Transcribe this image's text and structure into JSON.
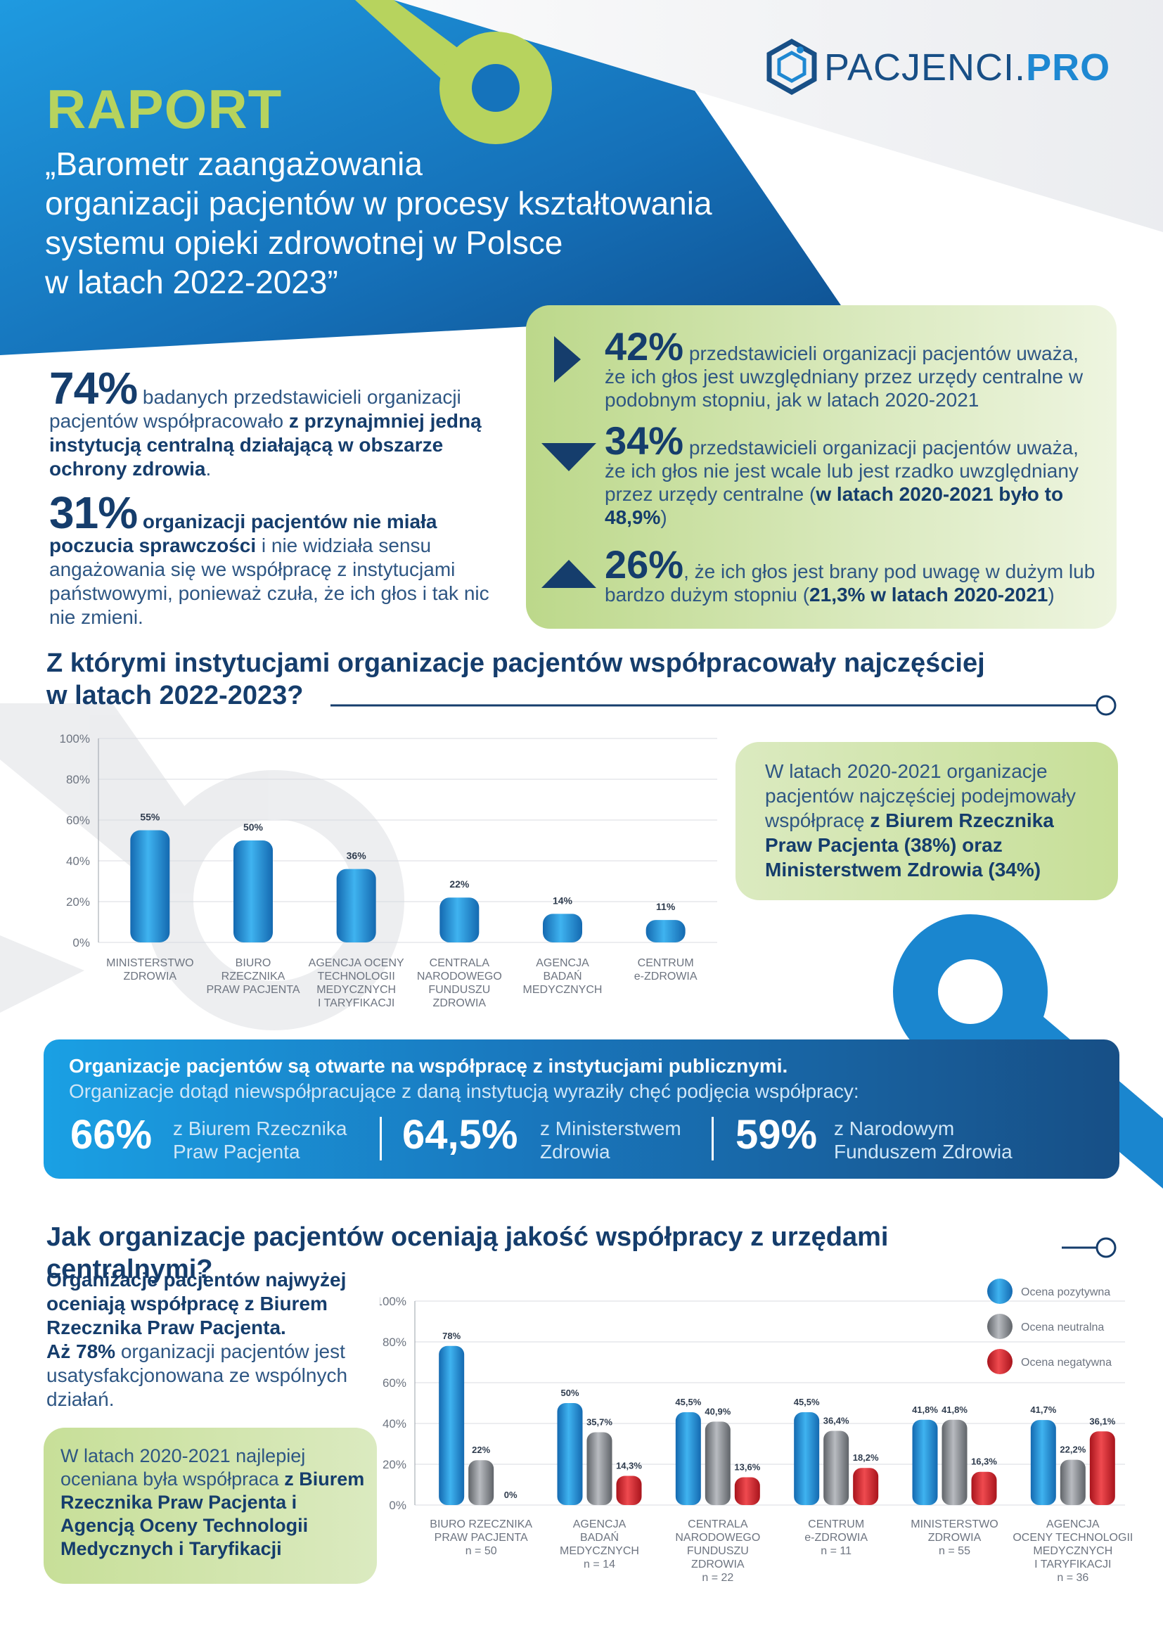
{
  "brand": {
    "logo_text_1": "PACJENCI",
    "logo_text_dot": ".",
    "logo_text_2": "PRO"
  },
  "header": {
    "label": "RAPORT",
    "title_lines": [
      "„Barometr zaangażowania",
      "organizacji pacjentów w procesy kształtowania",
      "systemu opieki zdrowotnej w Polsce",
      "w latach 2022-2023”"
    ]
  },
  "key_stats": {
    "s1": {
      "pct": "74%",
      "text_a": " badanych przedstawicieli organizacji pacjentów współpracowało ",
      "text_b": "z przynajmniej jedną instytucją centralną działającą w obszarze ochrony zdrowia",
      "text_c": "."
    },
    "s2": {
      "pct": "31%",
      "text_a": " organizacji pacjentów nie miała poczucia sprawczości",
      "text_b": " i nie widziała sensu angażowania się we współpracę z instytucjami państwowymi, ponieważ czuła, że ich głos i tak nic nie zmieni."
    }
  },
  "voice": {
    "i1": {
      "pct": "42%",
      "text": " przedstawicieli organizacji pacjentów uważa, że ich głos jest uwzględniany przez urzędy centralne w podobnym stopniu, jak w latach 2020-2021"
    },
    "i2": {
      "pct": "34%",
      "text_a": " przedstawicieli organizacji pacjentów uważa, że ich głos nie jest wcale lub jest rzadko uwzględniany przez urzędy centralne (",
      "text_b": "w latach 2020-2021 było to 48,9%",
      "text_c": ")"
    },
    "i3": {
      "pct": "26%",
      "text_a": ", że ich głos jest brany pod uwagę w dużym lub bardzo dużym stopniu (",
      "text_b": "21,3% w latach 2020-2021",
      "text_c": ")"
    }
  },
  "section1": {
    "heading_l1": "Z którymi instytucjami organizacje pacjentów współpracowały najczęściej",
    "heading_l2": "w latach 2022-2023?"
  },
  "info1": {
    "text_a": "W latach 2020-2021 organizacje pacjentów najczęściej podejmowały współpracę ",
    "text_b": "z Biurem Rzecznika Praw Pacjenta (38%) oraz Ministerstwem Zdrowia (34%)"
  },
  "openness": {
    "line1": "Organizacje pacjentów są otwarte na współpracę z instytucjami publicznymi.",
    "line2": "Organizacje dotąd niewspółpracujące z daną instytucją wyraziły chęć podjęcia współpracy:",
    "items": [
      {
        "pct": "66%",
        "l1": "z Biurem Rzecznika",
        "l2": "Praw Pacjenta"
      },
      {
        "pct": "64,5%",
        "l1": "z Ministerstwem",
        "l2": "Zdrowia"
      },
      {
        "pct": "59%",
        "l1": "z Narodowym",
        "l2": "Funduszem Zdrowia"
      }
    ]
  },
  "section2": {
    "heading": "Jak organizacje pacjentów oceniają jakość współpracy z urzędami centralnymi?"
  },
  "left_note": {
    "b1": "Organizacje pacjentów najwyżej oceniają współpracę z Biurem Rzecznika Praw Pacjenta.",
    "b2": "Aż 78%",
    "t": " organizacji pacjentów jest usatysfakcjonowana ze wspólnych działań."
  },
  "info2": {
    "text_a": "W latach 2020-2021 najlepiej oceniana była współpraca ",
    "text_b": "z Biurem Rzecznika Praw Pacjenta i Agencją Oceny Technologii Medycznych i Taryfikacji"
  },
  "colors": {
    "blue": "#1a86cf",
    "gray": "#8a8d92",
    "red": "#d1262f",
    "green": "#b7d35e",
    "navy": "#153d6c"
  },
  "chart_data": [
    {
      "type": "bar",
      "title": "Z którymi instytucjami organizacje pacjentów współpracowały najczęściej w latach 2022-2023?",
      "categories": [
        [
          "MINISTERSTWO",
          "ZDROWIA"
        ],
        [
          "BIURO",
          "RZECZNIKA",
          "PRAW PACJENTA"
        ],
        [
          "AGENCJA OCENY",
          "TECHNOLOGII",
          "MEDYCZNYCH",
          "I TARYFIKACJI"
        ],
        [
          "CENTRALA",
          "NARODOWEGO",
          "FUNDUSZU",
          "ZDROWIA"
        ],
        [
          "AGENCJA",
          "BADAŃ",
          "MEDYCZNYCH"
        ],
        [
          "CENTRUM",
          "e-ZDROWIA"
        ]
      ],
      "values": [
        55,
        50,
        36,
        22,
        14,
        11
      ],
      "value_labels": [
        "55%",
        "50%",
        "36%",
        "22%",
        "14%",
        "11%"
      ],
      "yticks": [
        "0%",
        "20%",
        "40%",
        "60%",
        "80%",
        "100%"
      ],
      "ylim": [
        0,
        100
      ],
      "grid": true
    },
    {
      "type": "bar",
      "title": "Jak organizacje pacjentów oceniają jakość współpracy z urzędami centralnymi?",
      "categories": [
        [
          "BIURO RZECZNIKA",
          "PRAW PACJENTA",
          "n = 50"
        ],
        [
          "AGENCJA",
          "BADAŃ",
          "MEDYCZNYCH",
          "n = 14"
        ],
        [
          "CENTRALA",
          "NARODOWEGO",
          "FUNDUSZU",
          "ZDROWIA",
          "n = 22"
        ],
        [
          "CENTRUM",
          "e-ZDROWIA",
          "n = 11"
        ],
        [
          "MINISTERSTWO",
          "ZDROWIA",
          "n = 55"
        ],
        [
          "AGENCJA",
          "OCENY TECHNOLOGII",
          "MEDYCZNYCH",
          "I TARYFIKACJI",
          "n = 36"
        ]
      ],
      "series": [
        {
          "name": "Ocena pozytywna",
          "color": "#1a86cf",
          "values": [
            78,
            50,
            45.5,
            45.5,
            41.8,
            41.7
          ],
          "labels": [
            "78%",
            "50%",
            "45,5%",
            "45,5%",
            "41,8%",
            "41,7%"
          ]
        },
        {
          "name": "Ocena neutralna",
          "color": "#8a8d92",
          "values": [
            22,
            35.7,
            40.9,
            36.4,
            41.8,
            22.2
          ],
          "labels": [
            "22%",
            "35,7%",
            "40,9%",
            "36,4%",
            "41,8%",
            "22,2%"
          ]
        },
        {
          "name": "Ocena negatywna",
          "color": "#d1262f",
          "values": [
            0,
            14.3,
            13.6,
            18.2,
            16.3,
            36.1
          ],
          "labels": [
            "0%",
            "14,3%",
            "13,6%",
            "18,2%",
            "16,3%",
            "36,1%"
          ]
        }
      ],
      "yticks": [
        "0%",
        "20%",
        "40%",
        "60%",
        "80%",
        "100%"
      ],
      "ylim": [
        0,
        100
      ],
      "legend": "top-right",
      "grid": true
    }
  ]
}
